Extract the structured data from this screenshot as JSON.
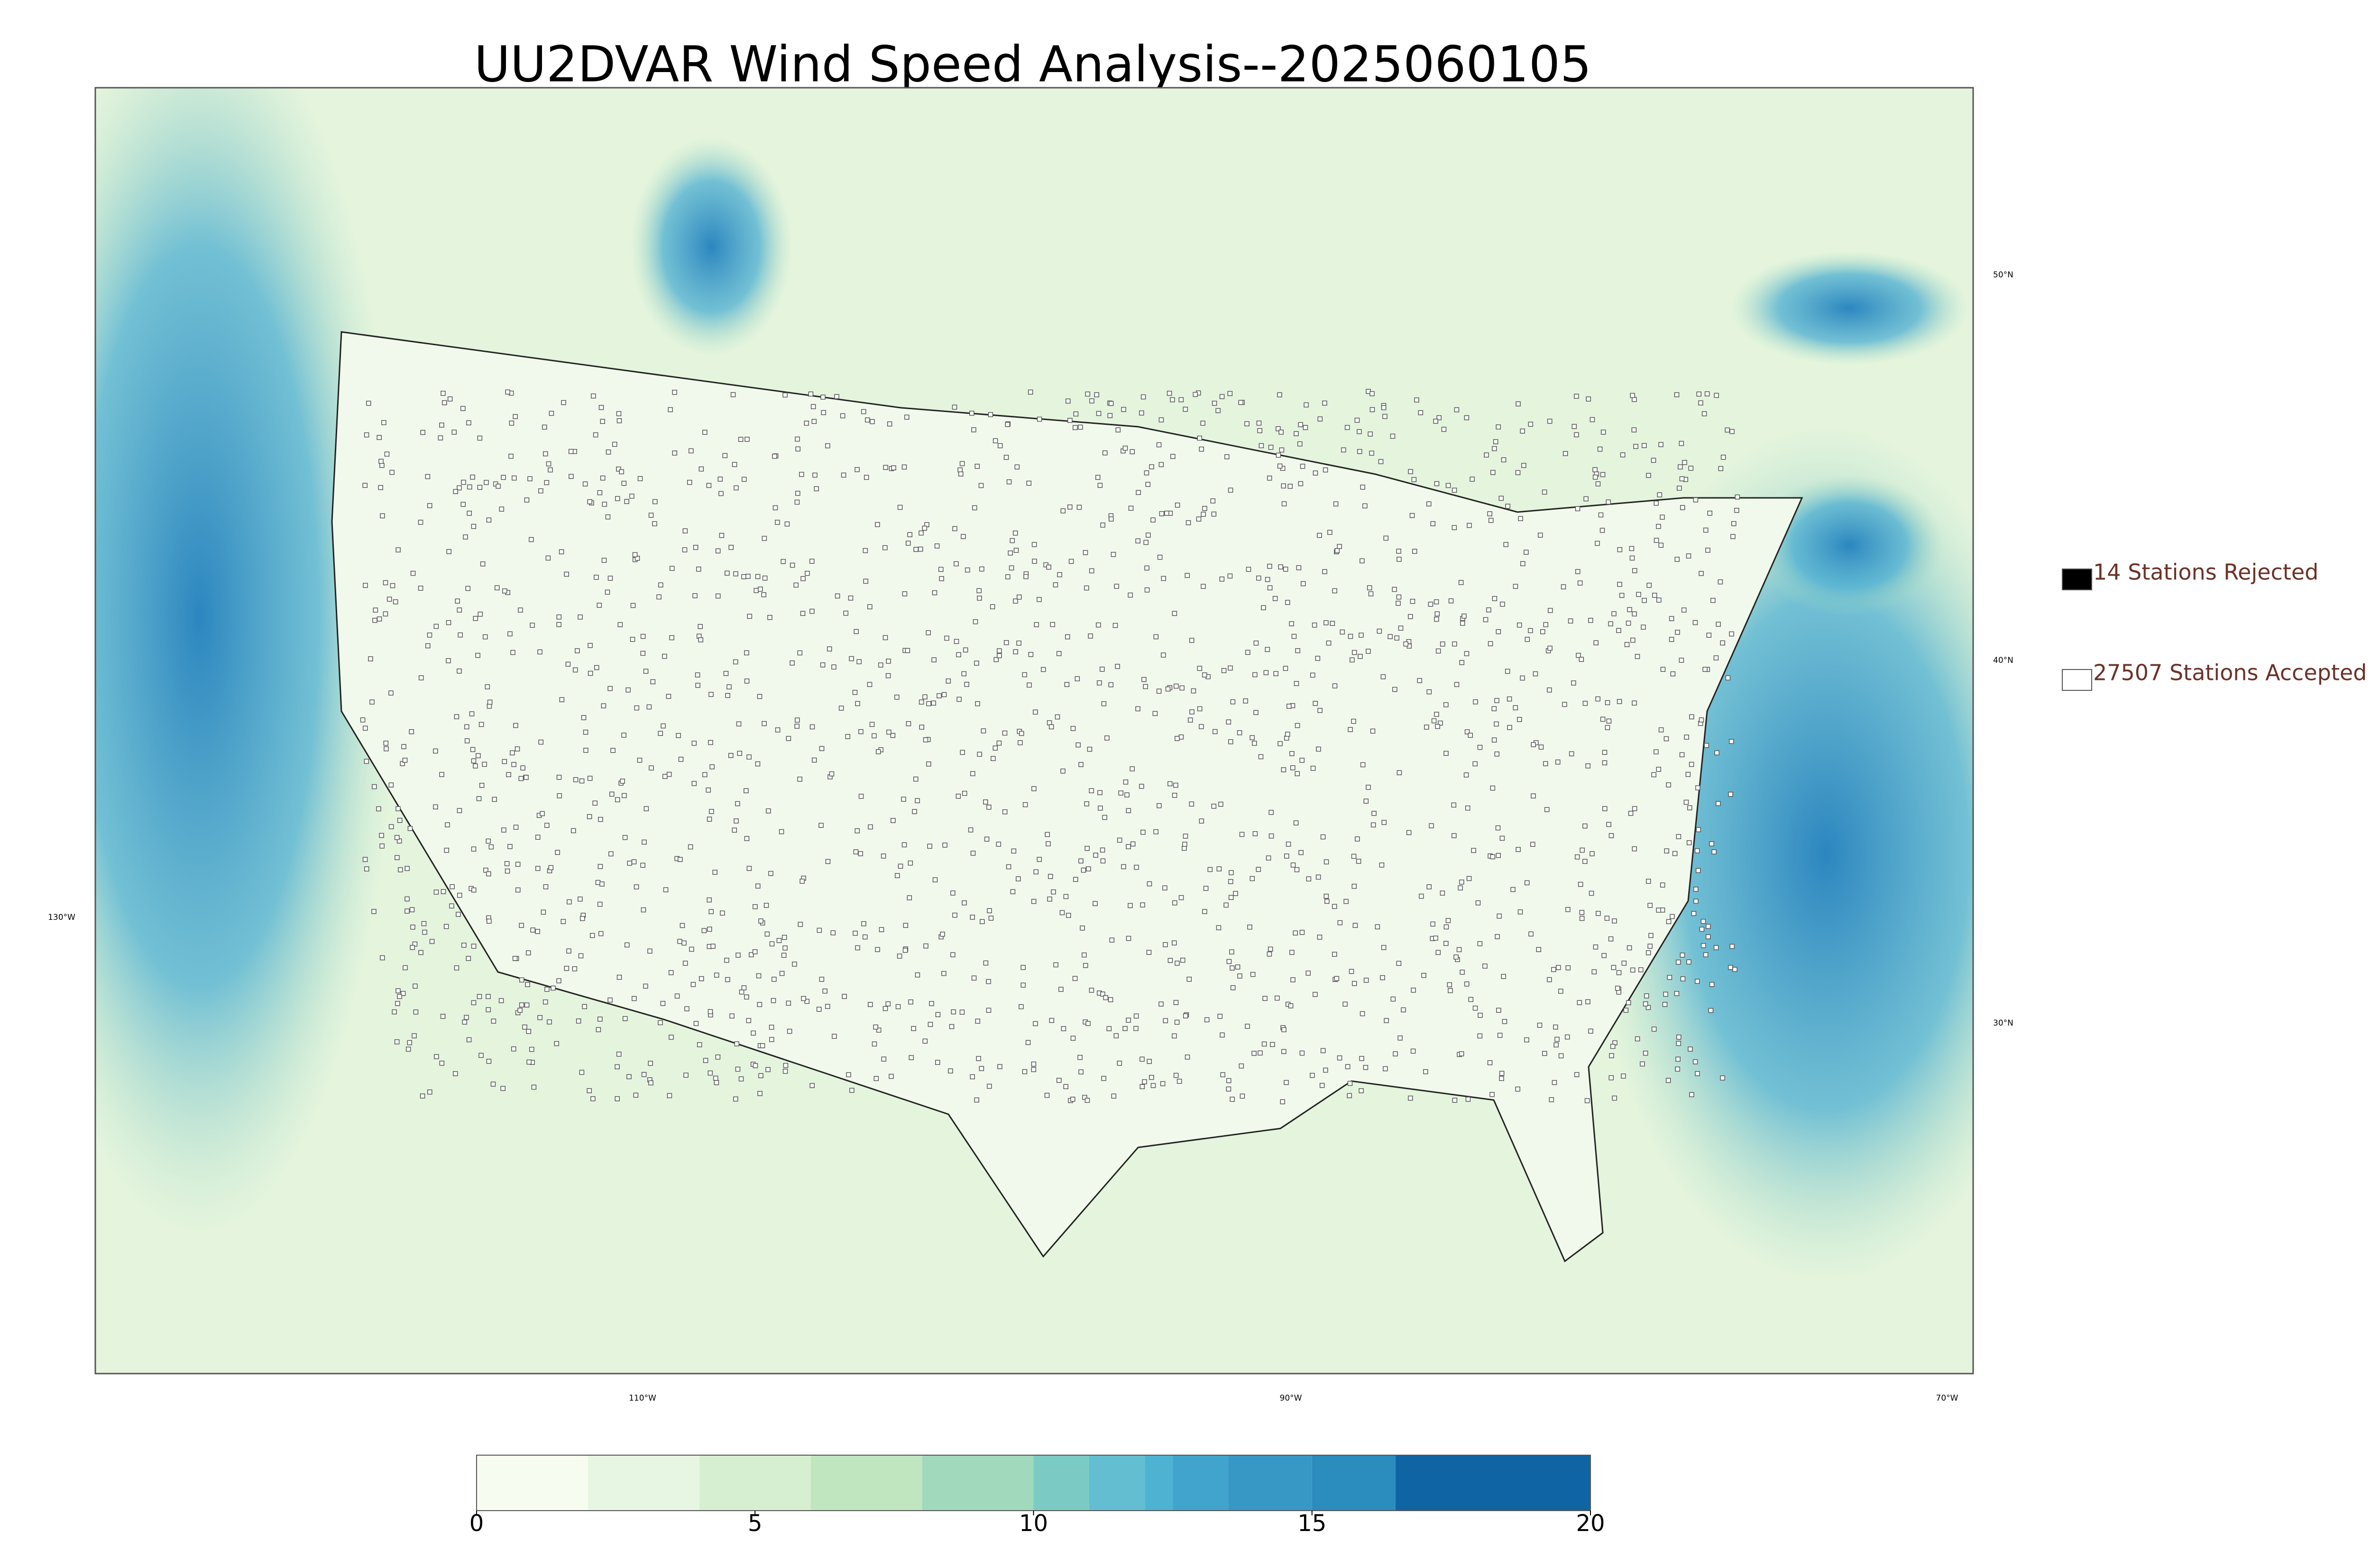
{
  "title": "UU2DVAR Wind Speed Analysis--2025060105",
  "legend": [
    {
      "label": "14 Stations Rejected",
      "color": "#000000"
    },
    {
      "label": "27507 Stations Accepted",
      "color": "#ffffff"
    }
  ],
  "graticule": {
    "latitudes": [
      "50°N",
      "40°N",
      "30°N"
    ],
    "longitudes": [
      "130°W",
      "110°W",
      "90°W",
      "70°W"
    ]
  },
  "colorbar": {
    "lim": [
      0,
      20
    ],
    "ticks": [
      0,
      5,
      10,
      15,
      20
    ],
    "levels": [
      {
        "value": 0,
        "color": "#f7fcf0"
      },
      {
        "value": 2,
        "color": "#e7f6e2"
      },
      {
        "value": 4,
        "color": "#d6efd0"
      },
      {
        "value": 6,
        "color": "#bfe6bf"
      },
      {
        "value": 8,
        "color": "#a0d9bb"
      },
      {
        "value": 10,
        "color": "#7bcbc4"
      },
      {
        "value": 11,
        "color": "#62bed0"
      },
      {
        "value": 12,
        "color": "#4eb3d3"
      },
      {
        "value": 12.5,
        "color": "#40a4cc"
      },
      {
        "value": 13.5,
        "color": "#3798c6"
      },
      {
        "value": 15,
        "color": "#2b8cbe"
      },
      {
        "value": 16.5,
        "color": "#0f65a4"
      }
    ]
  }
}
